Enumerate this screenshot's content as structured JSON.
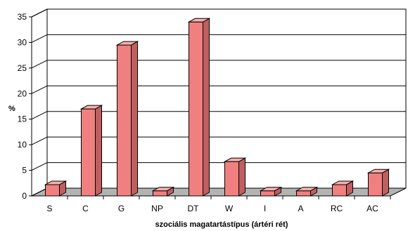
{
  "chart_data": {
    "type": "bar",
    "title": "",
    "xlabel": "szociális magatartástípus (ártéri rét)",
    "ylabel": "%",
    "categories": [
      "S",
      "C",
      "G",
      "NP",
      "DT",
      "W",
      "I",
      "A",
      "RC",
      "AC"
    ],
    "values": [
      2.2,
      17,
      29.5,
      1,
      34,
      6.7,
      1,
      1,
      2.2,
      4.5
    ],
    "ylim": [
      0,
      35
    ],
    "yticks": [
      0,
      5,
      10,
      15,
      20,
      25,
      30,
      35
    ],
    "grid": true,
    "legend": "none",
    "colors": {
      "bar_front": "#f08080",
      "bar_side": "#c05f5f",
      "bar_top": "#f7b0ae",
      "floor": "#b3b3b3",
      "grid": "#000000"
    }
  }
}
